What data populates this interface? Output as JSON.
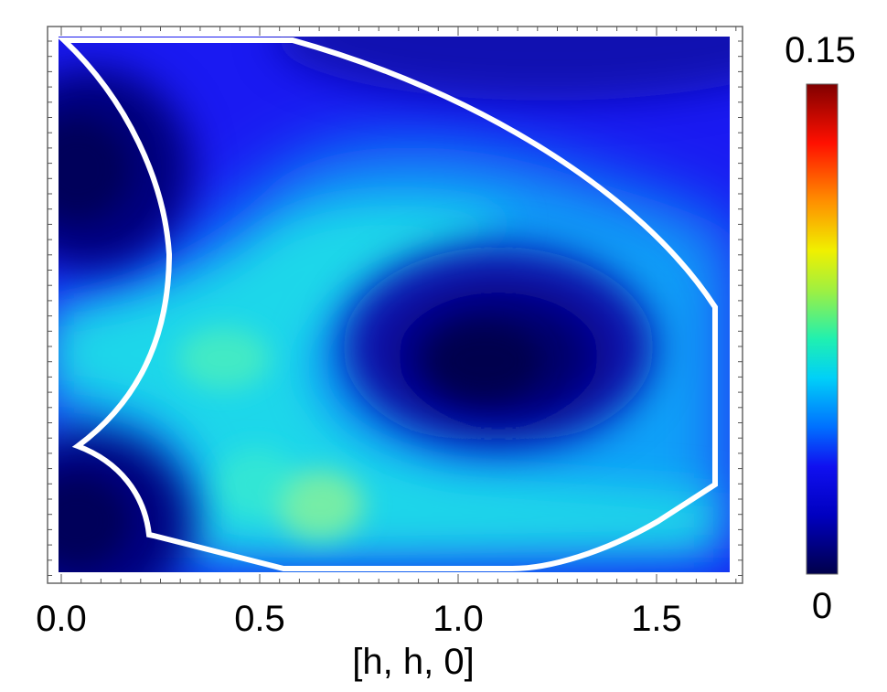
{
  "chart_data": {
    "type": "heatmap",
    "xlabel": "[h, h, 0]",
    "ylabel": "",
    "x_ticks": [
      "0.0",
      "0.5",
      "1.0",
      "1.5"
    ],
    "x_tick_values": [
      0.0,
      0.5,
      1.0,
      1.5
    ],
    "xlim": [
      -0.03,
      1.72
    ],
    "y_ticks": [],
    "colorbar": {
      "min": 0,
      "max": 0.15,
      "min_label": "0",
      "max_label": "0.15",
      "colormap": "jet"
    },
    "intensity_features": [
      {
        "kind": "minimum",
        "x": 1.12,
        "y_frac": 0.61,
        "value": 0.0
      },
      {
        "kind": "minimum",
        "x": 0.05,
        "y_frac": 0.78,
        "value": 0.0
      },
      {
        "kind": "minimum",
        "x": 0.05,
        "y_frac": 0.12,
        "value": 0.0
      },
      {
        "kind": "maximum",
        "x": 0.65,
        "y_frac": 0.12,
        "value": 0.065
      },
      {
        "kind": "maximum",
        "x": 0.4,
        "y_frac": 0.4,
        "value": 0.06
      }
    ],
    "overlay": {
      "description_color": "#ffffff"
    },
    "grid": false,
    "colors": {
      "colormap_stops": [
        "#00004a",
        "#0000c0",
        "#1010f0",
        "#0080ff",
        "#00e0f0",
        "#40f080",
        "#e0f000",
        "#ff9000",
        "#ff1000",
        "#800000"
      ],
      "outline": "#ffffff",
      "frame": "#555555"
    }
  }
}
